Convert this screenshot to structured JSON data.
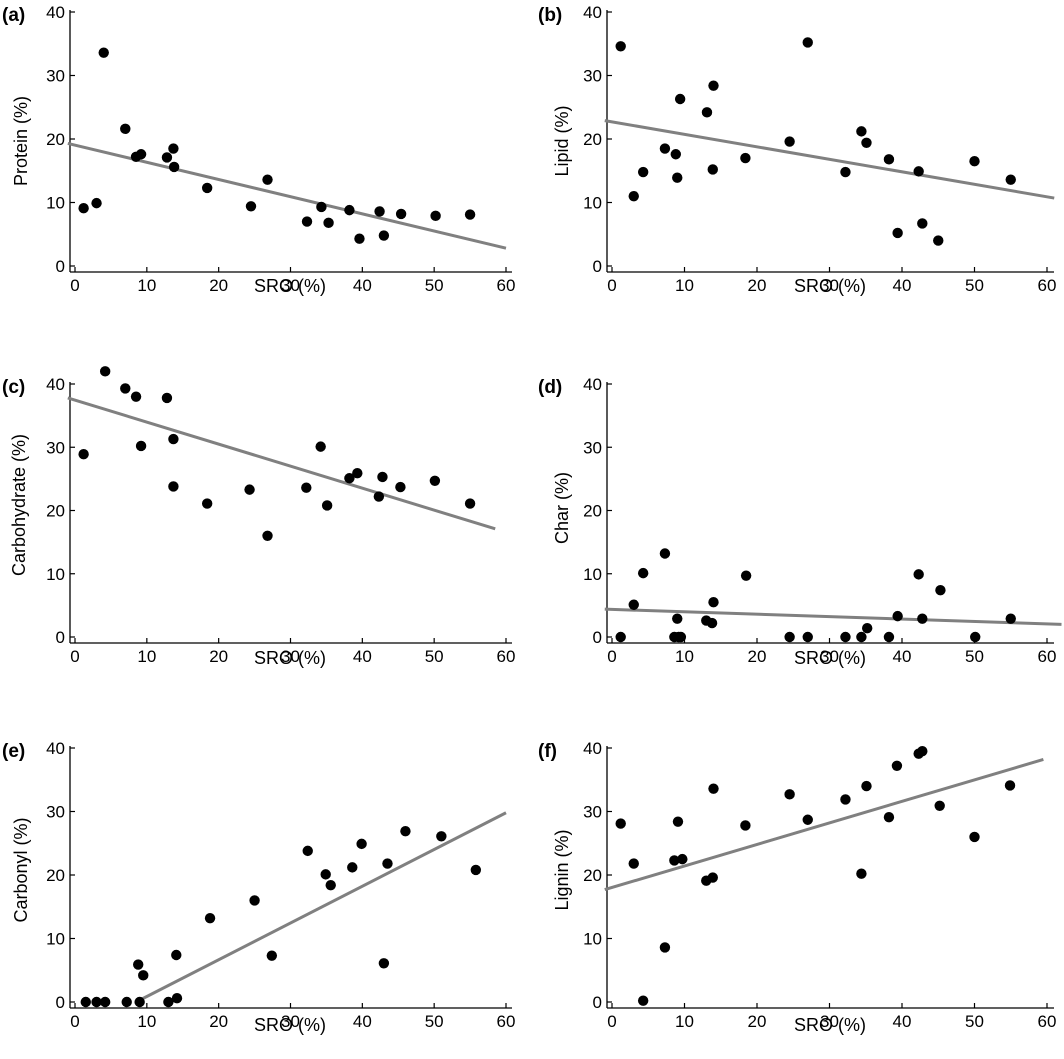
{
  "chart_data": [
    {
      "panel": "(a)",
      "type": "scatter",
      "xlabel": "SRO (%)",
      "ylabel": "Protein (%)",
      "xlim": [
        0,
        60
      ],
      "ylim": [
        0,
        40
      ],
      "xticks": [
        "0",
        "10",
        "20",
        "30",
        "40",
        "50",
        "60"
      ],
      "yticks": [
        "0",
        "10",
        "20",
        "30",
        "40"
      ],
      "points": [
        [
          1.2,
          9.1
        ],
        [
          3,
          9.9
        ],
        [
          4,
          33.6
        ],
        [
          7,
          21.6
        ],
        [
          8.5,
          17.2
        ],
        [
          9.2,
          17.6
        ],
        [
          12.8,
          17.1
        ],
        [
          13.7,
          18.5
        ],
        [
          13.8,
          15.6
        ],
        [
          18.4,
          12.3
        ],
        [
          24.5,
          9.4
        ],
        [
          26.8,
          13.6
        ],
        [
          32.3,
          7
        ],
        [
          34.3,
          9.3
        ],
        [
          35.3,
          6.8
        ],
        [
          38.2,
          8.8
        ],
        [
          39.6,
          4.3
        ],
        [
          42.4,
          8.6
        ],
        [
          43,
          4.8
        ],
        [
          45.4,
          8.2
        ],
        [
          50.2,
          7.9
        ],
        [
          55,
          8.1
        ]
      ],
      "trend": [
        [
          -1,
          19.3
        ],
        [
          60,
          2.8
        ]
      ],
      "color": "#000000",
      "line_color": "#808080"
    },
    {
      "panel": "(b)",
      "type": "scatter",
      "xlabel": "SRO (%)",
      "ylabel": "Lipid (%)",
      "xlim": [
        0,
        60
      ],
      "ylim": [
        0,
        40
      ],
      "xticks": [
        "0",
        "10",
        "20",
        "30",
        "40",
        "50",
        "60"
      ],
      "yticks": [
        "0",
        "10",
        "20",
        "30",
        "40"
      ],
      "points": [
        [
          1.2,
          34.6
        ],
        [
          3,
          11
        ],
        [
          4.3,
          14.8
        ],
        [
          7.3,
          18.5
        ],
        [
          8.8,
          17.6
        ],
        [
          9,
          13.9
        ],
        [
          9.4,
          26.3
        ],
        [
          13.1,
          24.2
        ],
        [
          13.9,
          15.2
        ],
        [
          14,
          28.4
        ],
        [
          18.4,
          17
        ],
        [
          24.5,
          19.6
        ],
        [
          27,
          35.2
        ],
        [
          32.2,
          14.8
        ],
        [
          34.4,
          21.2
        ],
        [
          35.1,
          19.4
        ],
        [
          38.2,
          16.8
        ],
        [
          39.4,
          5.2
        ],
        [
          42.3,
          14.9
        ],
        [
          42.8,
          6.7
        ],
        [
          45,
          4
        ],
        [
          50,
          16.5
        ],
        [
          55,
          13.6
        ]
      ],
      "trend": [
        [
          -1,
          22.9
        ],
        [
          61,
          10.7
        ]
      ],
      "color": "#000000",
      "line_color": "#808080"
    },
    {
      "panel": "(c)",
      "type": "scatter",
      "xlabel": "SRO (%)",
      "ylabel": "Carbohydrate (%)",
      "xlim": [
        0,
        60
      ],
      "ylim": [
        0,
        40
      ],
      "xticks": [
        "0",
        "10",
        "20",
        "30",
        "40",
        "50",
        "60"
      ],
      "yticks": [
        "0",
        "10",
        "20",
        "30",
        "40"
      ],
      "points": [
        [
          1.2,
          28.9
        ],
        [
          4.2,
          42
        ],
        [
          7,
          39.3
        ],
        [
          8.5,
          38
        ],
        [
          9.2,
          30.2
        ],
        [
          12.8,
          37.8
        ],
        [
          13.7,
          31.3
        ],
        [
          13.7,
          23.8
        ],
        [
          18.4,
          21.1
        ],
        [
          24.3,
          23.3
        ],
        [
          26.8,
          16
        ],
        [
          32.2,
          23.6
        ],
        [
          34.2,
          30.1
        ],
        [
          35.1,
          20.8
        ],
        [
          38.2,
          25.1
        ],
        [
          39.3,
          25.9
        ],
        [
          42.3,
          22.2
        ],
        [
          42.8,
          25.3
        ],
        [
          45.3,
          23.7
        ],
        [
          50.1,
          24.7
        ],
        [
          55,
          21.1
        ]
      ],
      "trend": [
        [
          -1,
          37.8
        ],
        [
          58.5,
          17.1
        ]
      ],
      "color": "#000000",
      "line_color": "#808080"
    },
    {
      "panel": "(d)",
      "type": "scatter",
      "xlabel": "SRO (%)",
      "ylabel": "Char (%)",
      "xlim": [
        0,
        60
      ],
      "ylim": [
        0,
        40
      ],
      "xticks": [
        "0",
        "10",
        "20",
        "30",
        "40",
        "50",
        "60"
      ],
      "yticks": [
        "0",
        "10",
        "20",
        "30",
        "40"
      ],
      "points": [
        [
          1.2,
          0
        ],
        [
          3,
          5.1
        ],
        [
          4.3,
          10.1
        ],
        [
          7.3,
          13.2
        ],
        [
          8.6,
          0
        ],
        [
          9,
          2.9
        ],
        [
          9.2,
          0
        ],
        [
          9.5,
          0
        ],
        [
          13,
          2.6
        ],
        [
          13.8,
          2.2
        ],
        [
          14,
          5.5
        ],
        [
          18.5,
          9.7
        ],
        [
          24.5,
          0
        ],
        [
          27,
          0
        ],
        [
          32.2,
          0
        ],
        [
          34.4,
          0
        ],
        [
          35.2,
          1.4
        ],
        [
          38.2,
          0
        ],
        [
          39.4,
          3.3
        ],
        [
          42.3,
          9.9
        ],
        [
          42.8,
          2.9
        ],
        [
          45.3,
          7.4
        ],
        [
          50.1,
          0
        ],
        [
          55,
          2.9
        ]
      ],
      "trend": [
        [
          -1,
          4.4
        ],
        [
          62,
          2
        ]
      ],
      "color": "#000000",
      "line_color": "#808080"
    },
    {
      "panel": "(e)",
      "type": "scatter",
      "xlabel": "SRO (%)",
      "ylabel": "Carbonyl (%)",
      "xlim": [
        0,
        60
      ],
      "ylim": [
        0,
        40
      ],
      "xticks": [
        "0",
        "10",
        "20",
        "30",
        "40",
        "50",
        "60"
      ],
      "yticks": [
        "0",
        "10",
        "20",
        "30",
        "40"
      ],
      "points": [
        [
          1.5,
          0
        ],
        [
          3,
          0
        ],
        [
          4.2,
          0
        ],
        [
          7.2,
          0
        ],
        [
          8.8,
          5.9
        ],
        [
          9,
          0
        ],
        [
          9.5,
          4.2
        ],
        [
          13,
          0
        ],
        [
          14.1,
          7.4
        ],
        [
          14.2,
          0.6
        ],
        [
          18.8,
          13.2
        ],
        [
          25,
          16
        ],
        [
          27.4,
          7.3
        ],
        [
          32.4,
          23.8
        ],
        [
          34.9,
          20.1
        ],
        [
          35.6,
          18.4
        ],
        [
          38.6,
          21.2
        ],
        [
          39.9,
          24.9
        ],
        [
          43,
          6.1
        ],
        [
          43.5,
          21.8
        ],
        [
          46,
          26.9
        ],
        [
          51,
          26.1
        ],
        [
          55.8,
          20.8
        ]
      ],
      "trend": [
        [
          8.5,
          0
        ],
        [
          60,
          29.8
        ]
      ],
      "color": "#000000",
      "line_color": "#808080"
    },
    {
      "panel": "(f)",
      "type": "scatter",
      "xlabel": "SRO (%)",
      "ylabel": "Lignin (%)",
      "xlim": [
        0,
        60
      ],
      "ylim": [
        0,
        40
      ],
      "xticks": [
        "0",
        "10",
        "20",
        "30",
        "40",
        "50",
        "60"
      ],
      "yticks": [
        "0",
        "10",
        "20",
        "30",
        "40"
      ],
      "points": [
        [
          1.2,
          28.1
        ],
        [
          3,
          21.8
        ],
        [
          4.3,
          0.2
        ],
        [
          7.3,
          8.6
        ],
        [
          8.6,
          22.3
        ],
        [
          9.1,
          28.4
        ],
        [
          9.7,
          22.5
        ],
        [
          13,
          19.1
        ],
        [
          13.9,
          19.6
        ],
        [
          14,
          33.6
        ],
        [
          18.4,
          27.8
        ],
        [
          24.5,
          32.7
        ],
        [
          27,
          28.7
        ],
        [
          32.2,
          31.9
        ],
        [
          34.4,
          20.2
        ],
        [
          35.1,
          34
        ],
        [
          38.2,
          29.1
        ],
        [
          39.3,
          37.2
        ],
        [
          42.3,
          39.1
        ],
        [
          42.8,
          39.5
        ],
        [
          45.2,
          30.9
        ],
        [
          50,
          26
        ],
        [
          54.9,
          34.1
        ]
      ],
      "trend": [
        [
          -1,
          17.7
        ],
        [
          59.5,
          38.2
        ]
      ],
      "color": "#000000",
      "line_color": "#808080"
    }
  ]
}
